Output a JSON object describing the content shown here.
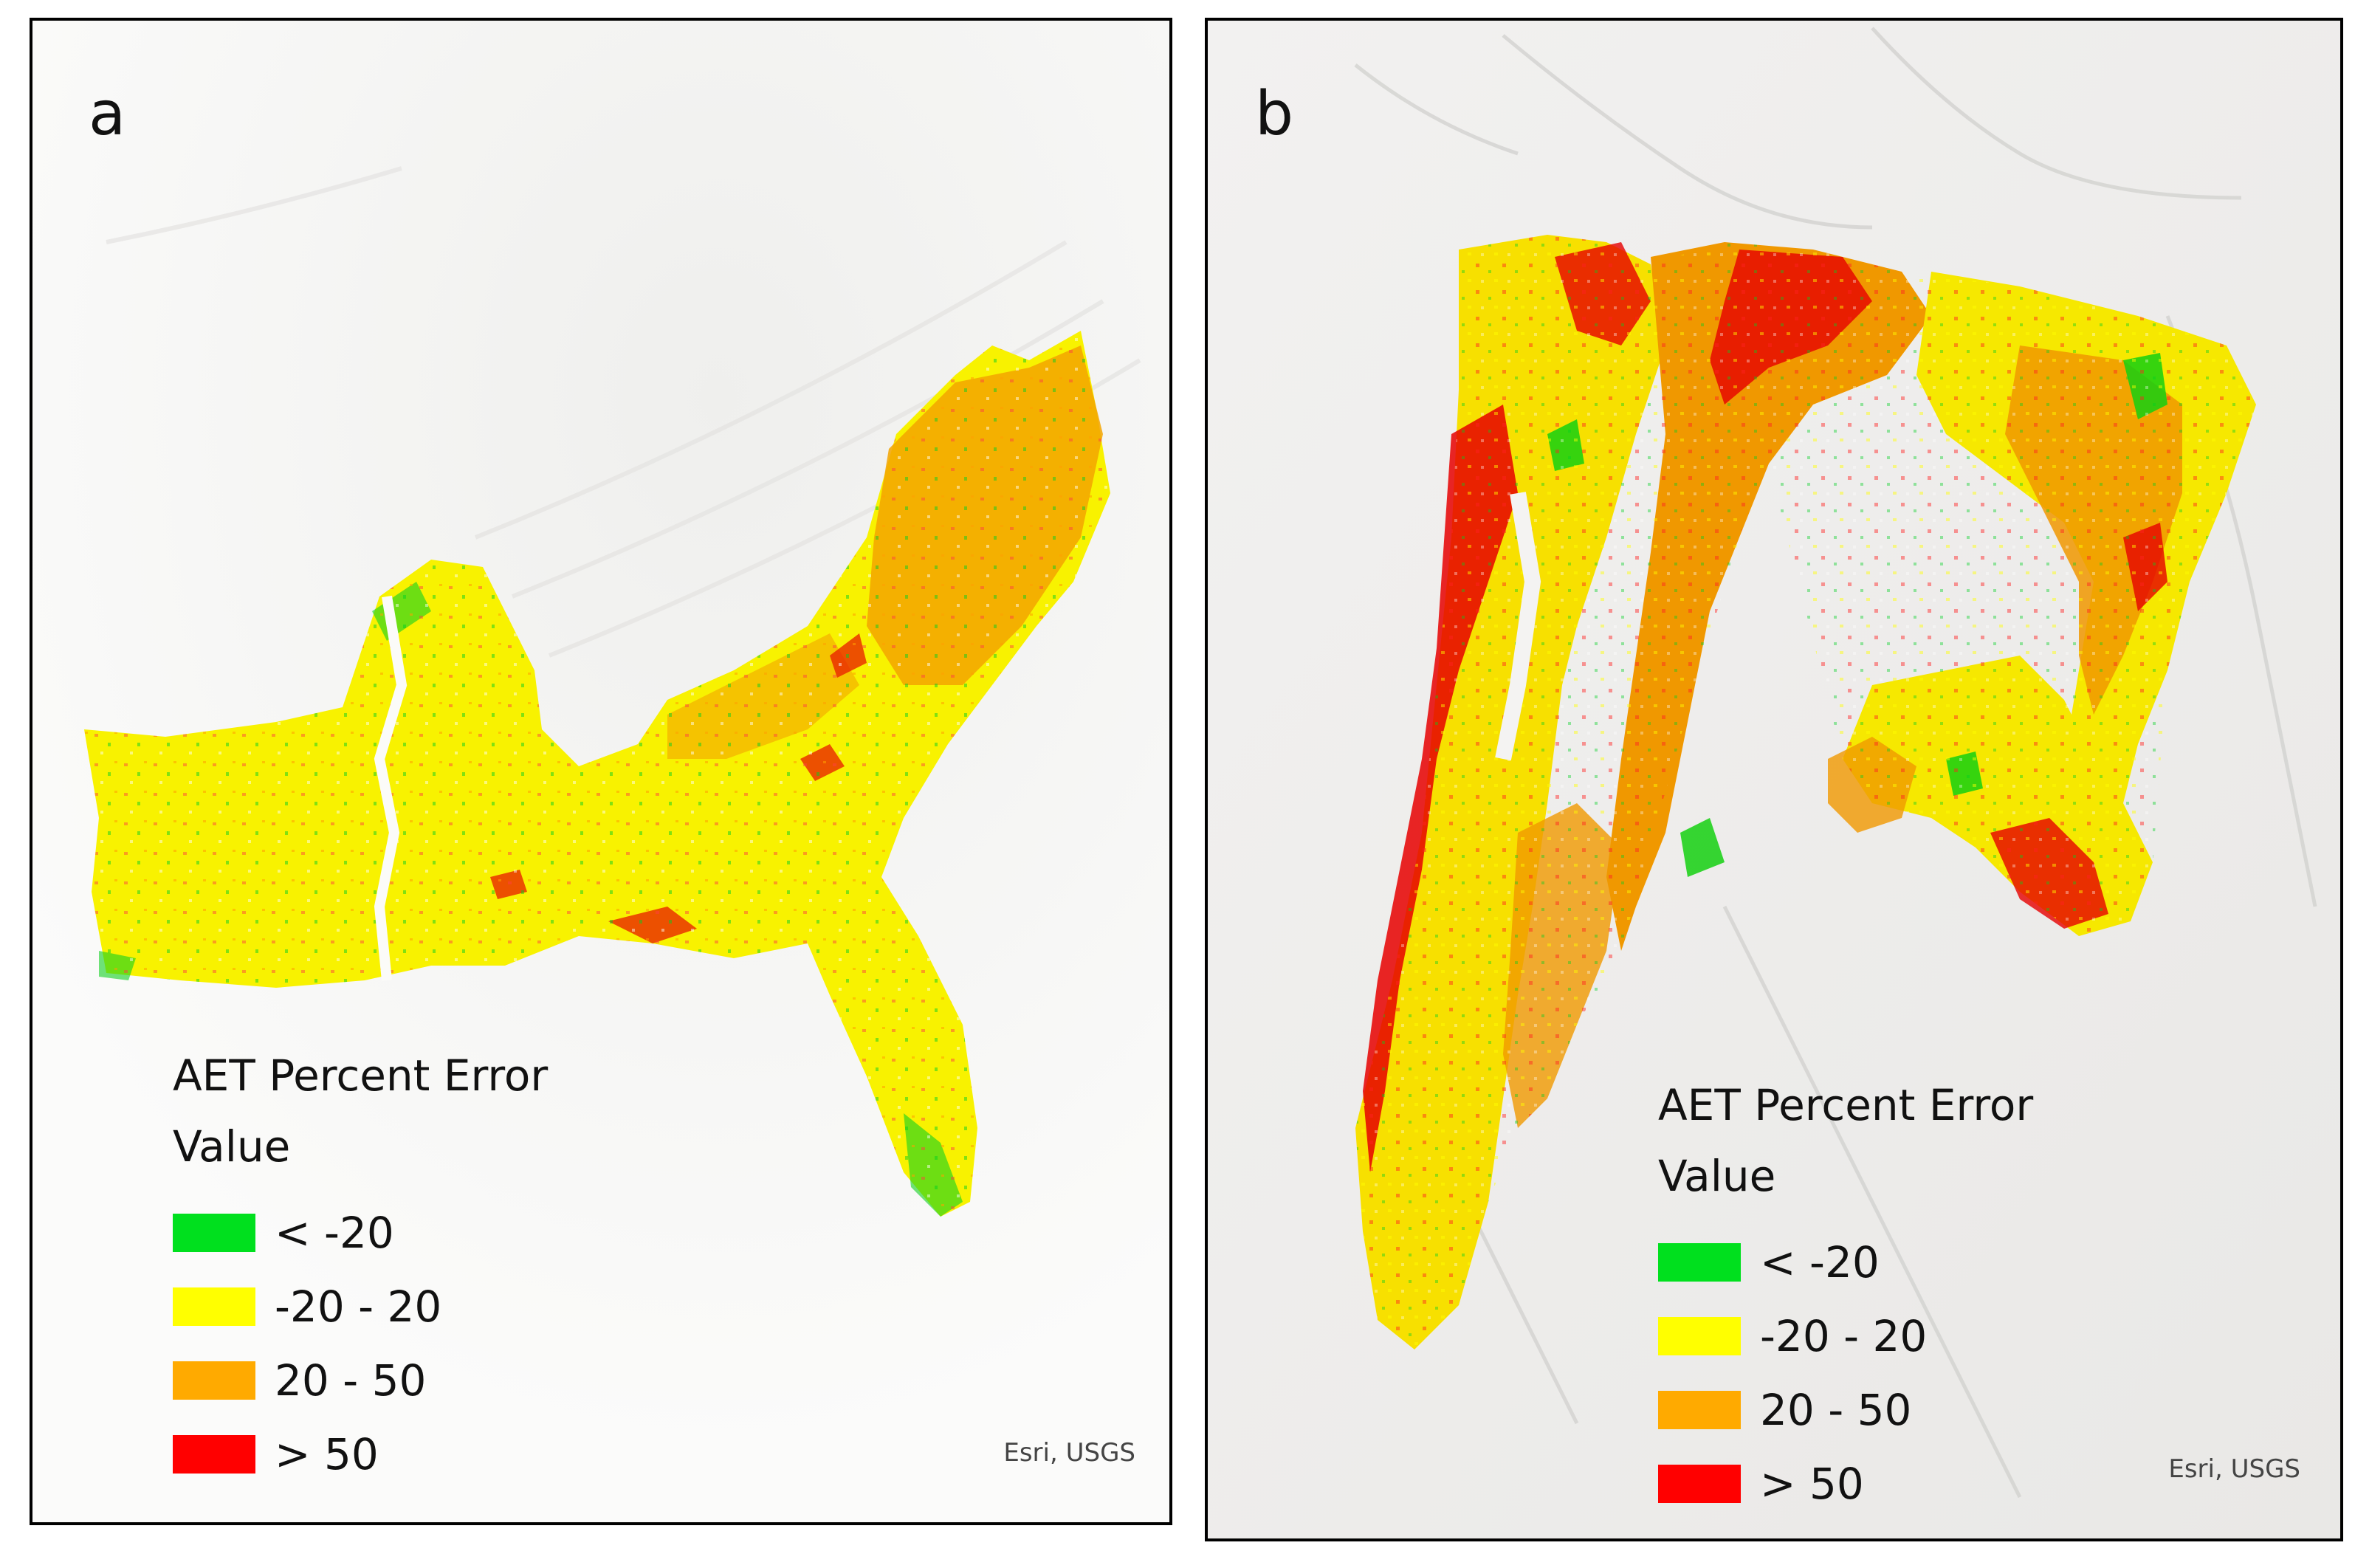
{
  "panels": [
    {
      "letter": "a",
      "legend": {
        "title": "AET Percent Error",
        "subtitle": "Value",
        "classes": [
          {
            "label": "< -20",
            "color": "#00e01e"
          },
          {
            "label": "-20 - 20",
            "color": "#ffff00"
          },
          {
            "label": "20 - 50",
            "color": "#ffaa00"
          },
          {
            "label": "> 50",
            "color": "#ff0000"
          }
        ]
      },
      "credit": "Esri, USGS"
    },
    {
      "letter": "b",
      "legend": {
        "title": "AET Percent Error",
        "subtitle": "Value",
        "classes": [
          {
            "label": "< -20",
            "color": "#00e01e"
          },
          {
            "label": "-20 - 20",
            "color": "#ffff00"
          },
          {
            "label": "20 - 50",
            "color": "#ffaa00"
          },
          {
            "label": "> 50",
            "color": "#ff0000"
          }
        ]
      },
      "credit": "Esri, USGS"
    }
  ]
}
